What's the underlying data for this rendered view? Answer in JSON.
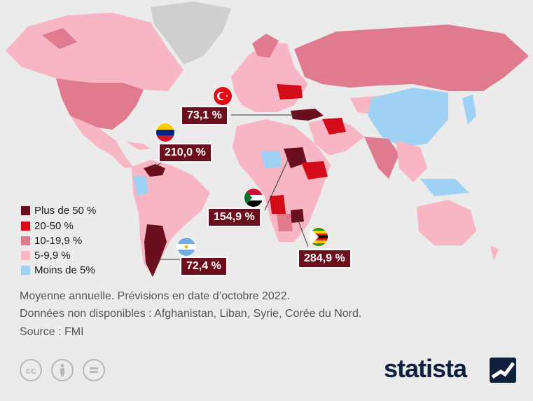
{
  "legend": [
    {
      "label": "Plus de 50 %",
      "color": "#6b0f1f"
    },
    {
      "label": "20-50 %",
      "color": "#d30a17"
    },
    {
      "label": "10-19,9 %",
      "color": "#e07a8f"
    },
    {
      "label": "5-9,9 %",
      "color": "#f8b5c4"
    },
    {
      "label": "Moins de 5%",
      "color": "#9fd1f5"
    }
  ],
  "no_data_color": "#cfcfcf",
  "callouts": {
    "turkey": {
      "value": "73,1 %",
      "flag": "turkey-flag"
    },
    "venezuela": {
      "value": "210,0 %",
      "flag": "venezuela-flag"
    },
    "sudan": {
      "value": "154,9 %",
      "flag": "sudan-flag"
    },
    "zimbabwe": {
      "value": "284,9 %",
      "flag": "zimbabwe-flag"
    },
    "argentina": {
      "value": "72,4 %",
      "flag": "argentina-flag"
    }
  },
  "notes": {
    "line1": "Moyenne annuelle. Prévisions en date d’octobre 2022.",
    "line2": "Données non disponibles : Afghanistan, Liban, Syrie, Corée du Nord.",
    "source": "Source : FMI"
  },
  "license_icons": [
    "cc-icon",
    "by-icon",
    "nd-icon"
  ],
  "brand": {
    "name": "statista",
    "icon": "statista-logo-icon"
  }
}
